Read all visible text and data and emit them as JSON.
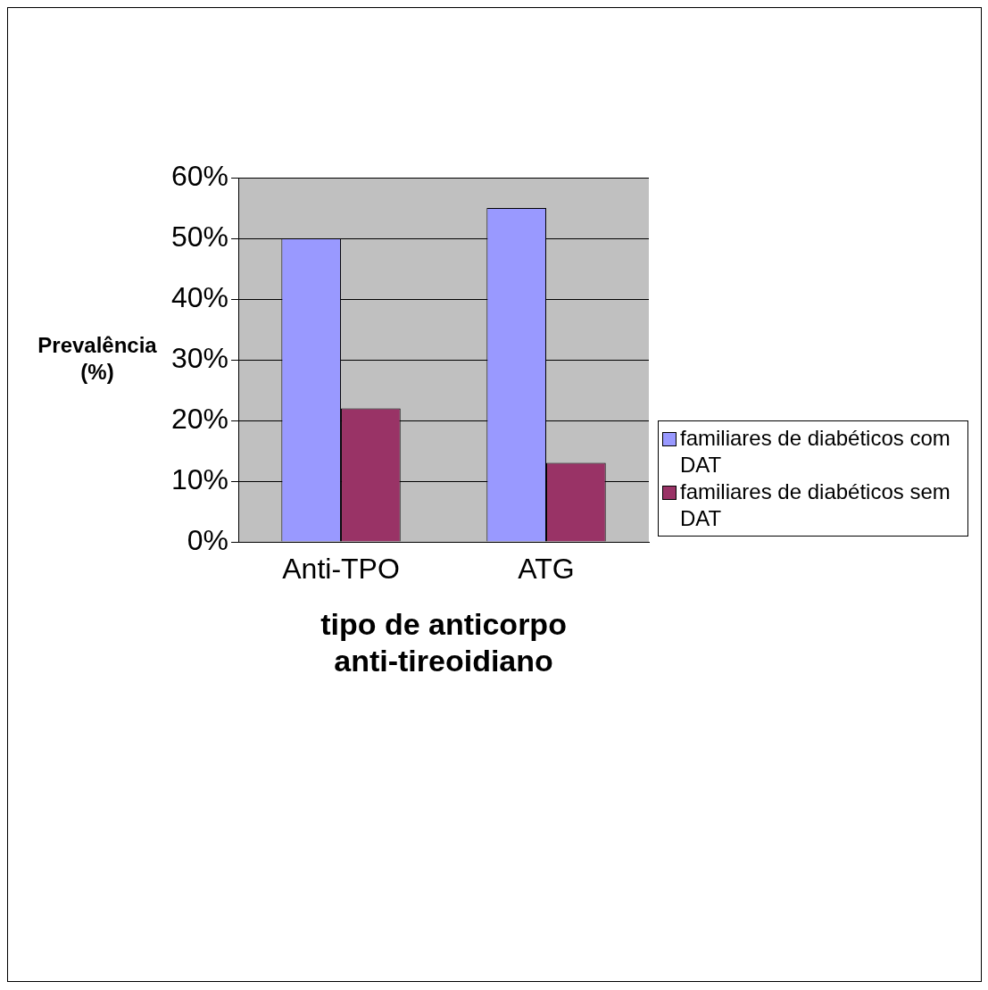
{
  "chart_data": {
    "type": "bar",
    "xlabel": "tipo de anticorpo anti-tireoidiano",
    "ylabel": "Prevalência (%)",
    "categories": [
      "Anti-TPO",
      "ATG"
    ],
    "series": [
      {
        "name": "familiares de diabéticos com DAT",
        "color": "#9999ff",
        "values": [
          50,
          55
        ]
      },
      {
        "name": "familiares de diabéticos sem DAT",
        "color": "#993366",
        "values": [
          22,
          13
        ]
      }
    ],
    "ylim": [
      0,
      60
    ],
    "yticks": [
      {
        "value": 0,
        "label": "0%"
      },
      {
        "value": 10,
        "label": "10%"
      },
      {
        "value": 20,
        "label": "20%"
      },
      {
        "value": 30,
        "label": "30%"
      },
      {
        "value": 40,
        "label": "40%"
      },
      {
        "value": 50,
        "label": "50%"
      },
      {
        "value": 60,
        "label": "60%"
      }
    ],
    "grid": "y",
    "legend": "right"
  }
}
